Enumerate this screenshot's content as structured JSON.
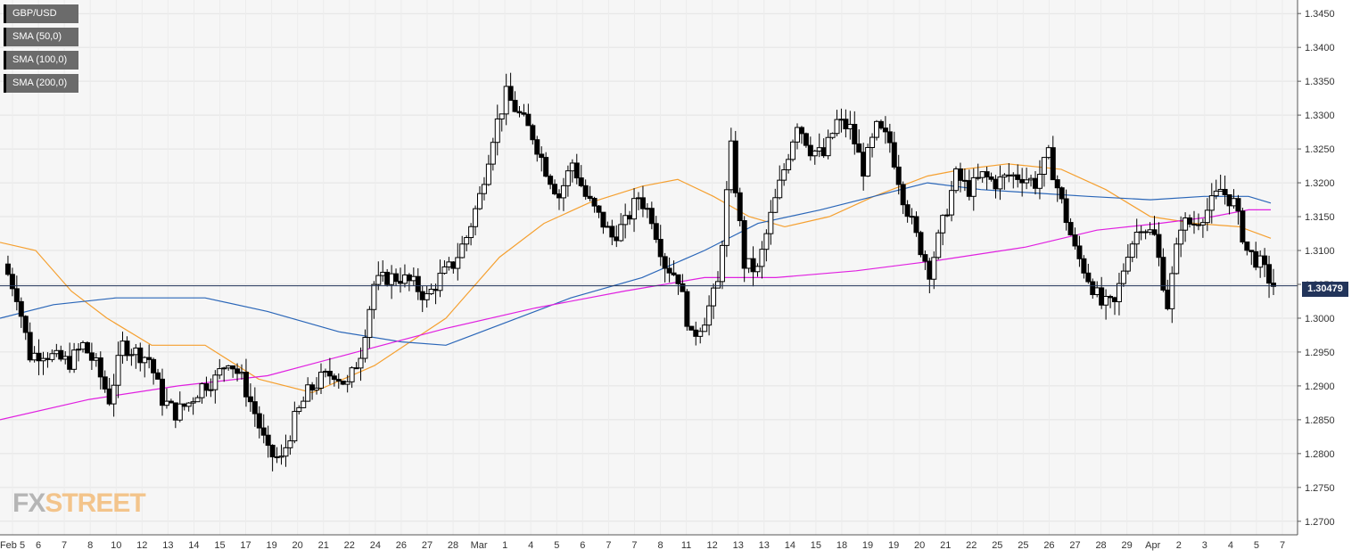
{
  "chart_data": {
    "type": "candlestick",
    "instrument": "GBP/USD",
    "current_price": "1.30479",
    "y_ticks": [
      "1.3450",
      "1.3400",
      "1.3350",
      "1.3300",
      "1.3250",
      "1.3200",
      "1.3150",
      "1.3100",
      "1.3050",
      "1.3000",
      "1.2950",
      "1.2900",
      "1.2850",
      "1.2800",
      "1.2750",
      "1.2700"
    ],
    "ylim": [
      1.268,
      1.347
    ],
    "x_ticks": [
      "Feb 5",
      "6",
      "7",
      "8",
      "10",
      "12",
      "13",
      "14",
      "15",
      "17",
      "19",
      "20",
      "21",
      "22",
      "24",
      "26",
      "27",
      "28",
      "Mar",
      "1",
      "4",
      "5",
      "6",
      "7",
      "7",
      "8",
      "11",
      "12",
      "13",
      "13",
      "14",
      "15",
      "18",
      "19",
      "19",
      "20",
      "21",
      "22",
      "25",
      "25",
      "26",
      "27",
      "28",
      "29",
      "Apr",
      "2",
      "3",
      "4",
      "5",
      "7"
    ],
    "grid": true,
    "legend": [
      {
        "name": "GBP/USD",
        "color": "#000000"
      },
      {
        "name": "SMA (50,0)",
        "color": "#f5a030"
      },
      {
        "name": "SMA (100,0)",
        "color": "#2a66b8"
      },
      {
        "name": "SMA (200,0)",
        "color": "#e020e0"
      }
    ],
    "price_path": [
      1.308,
      1.3035,
      1.2945,
      1.295,
      1.294,
      1.2935,
      1.296,
      1.293,
      1.288,
      1.296,
      1.295,
      1.294,
      1.288,
      1.286,
      1.2875,
      1.29,
      1.291,
      1.294,
      1.291,
      1.286,
      1.28,
      1.279,
      1.285,
      1.289,
      1.291,
      1.292,
      1.29,
      1.295,
      1.305,
      1.306,
      1.306,
      1.305,
      1.303,
      1.306,
      1.308,
      1.312,
      1.318,
      1.327,
      1.333,
      1.33,
      1.327,
      1.322,
      1.318,
      1.323,
      1.318,
      1.315,
      1.312,
      1.314,
      1.318,
      1.315,
      1.308,
      1.306,
      1.297,
      1.3,
      1.305,
      1.325,
      1.308,
      1.307,
      1.315,
      1.322,
      1.329,
      1.325,
      1.324,
      1.329,
      1.328,
      1.322,
      1.328,
      1.326,
      1.318,
      1.312,
      1.307,
      1.314,
      1.321,
      1.319,
      1.321,
      1.32,
      1.321,
      1.321,
      1.32,
      1.324,
      1.317,
      1.31,
      1.306,
      1.302,
      1.302,
      1.31,
      1.314,
      1.312,
      1.302,
      1.314,
      1.314,
      1.316,
      1.319,
      1.317,
      1.31,
      1.308,
      1.3047
    ],
    "sma_50": [
      [
        0,
        1.3112
      ],
      [
        40,
        1.31
      ],
      [
        80,
        1.304
      ],
      [
        120,
        1.3
      ],
      [
        170,
        1.296
      ],
      [
        230,
        1.296
      ],
      [
        290,
        1.291
      ],
      [
        350,
        1.289
      ],
      [
        420,
        1.293
      ],
      [
        500,
        1.3
      ],
      [
        560,
        1.309
      ],
      [
        610,
        1.314
      ],
      [
        660,
        1.317
      ],
      [
        720,
        1.3195
      ],
      [
        760,
        1.3205
      ],
      [
        800,
        1.318
      ],
      [
        840,
        1.315
      ],
      [
        880,
        1.3135
      ],
      [
        930,
        1.315
      ],
      [
        980,
        1.318
      ],
      [
        1040,
        1.321
      ],
      [
        1080,
        1.322
      ],
      [
        1130,
        1.3228
      ],
      [
        1190,
        1.322
      ],
      [
        1240,
        1.319
      ],
      [
        1290,
        1.315
      ],
      [
        1340,
        1.314
      ],
      [
        1390,
        1.3135
      ],
      [
        1425,
        1.3118
      ]
    ],
    "sma_100": [
      [
        0,
        1.3
      ],
      [
        60,
        1.302
      ],
      [
        130,
        1.303
      ],
      [
        230,
        1.303
      ],
      [
        300,
        1.301
      ],
      [
        380,
        1.298
      ],
      [
        450,
        1.2965
      ],
      [
        500,
        1.296
      ],
      [
        560,
        1.299
      ],
      [
        640,
        1.303
      ],
      [
        720,
        1.306
      ],
      [
        790,
        1.31
      ],
      [
        850,
        1.314
      ],
      [
        920,
        1.316
      ],
      [
        980,
        1.318
      ],
      [
        1040,
        1.32
      ],
      [
        1100,
        1.319
      ],
      [
        1160,
        1.3185
      ],
      [
        1220,
        1.318
      ],
      [
        1290,
        1.3175
      ],
      [
        1350,
        1.318
      ],
      [
        1400,
        1.318
      ],
      [
        1425,
        1.317
      ]
    ],
    "sma_200": [
      [
        0,
        1.285
      ],
      [
        100,
        1.288
      ],
      [
        200,
        1.29
      ],
      [
        300,
        1.2915
      ],
      [
        400,
        1.295
      ],
      [
        500,
        1.2985
      ],
      [
        600,
        1.3015
      ],
      [
        700,
        1.304
      ],
      [
        790,
        1.306
      ],
      [
        870,
        1.306
      ],
      [
        960,
        1.307
      ],
      [
        1050,
        1.3085
      ],
      [
        1150,
        1.3105
      ],
      [
        1230,
        1.313
      ],
      [
        1300,
        1.314
      ],
      [
        1360,
        1.315
      ],
      [
        1400,
        1.316
      ],
      [
        1425,
        1.316
      ]
    ]
  },
  "watermark": {
    "prefix": "FX",
    "suffix": "STREET"
  }
}
